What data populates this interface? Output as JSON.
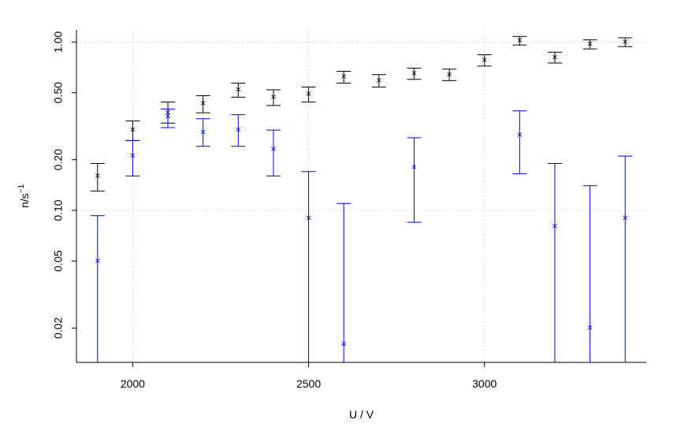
{
  "chart_data": {
    "type": "scatter",
    "xlabel": "U / V",
    "ylabel": "n/s",
    "ylabel_superscript": "−1",
    "y_scale": "log",
    "xlim": [
      1840,
      3460
    ],
    "ylim": [
      0.0125,
      1.18
    ],
    "x_ticks": [
      2000,
      2500,
      3000
    ],
    "x_tick_labels": [
      "2000",
      "2500",
      "3000"
    ],
    "y_ticks": [
      0.02,
      0.05,
      0.1,
      0.2,
      0.5,
      1.0
    ],
    "y_tick_labels": [
      "0.02",
      "0.05",
      "0.10",
      "0.20",
      "0.50",
      "1.00"
    ],
    "grid_x": [
      2000,
      2500,
      3000
    ],
    "grid_y": [
      0.1,
      1.0
    ],
    "series": [
      {
        "color": "#000000",
        "points": [
          {
            "x": 1900,
            "y": 0.16,
            "lo": 0.13,
            "hi": 0.19
          },
          {
            "x": 2000,
            "y": 0.3,
            "lo": 0.26,
            "hi": 0.34
          },
          {
            "x": 2100,
            "y": 0.38,
            "lo": 0.33,
            "hi": 0.44
          },
          {
            "x": 2200,
            "y": 0.43,
            "lo": 0.38,
            "hi": 0.48
          },
          {
            "x": 2300,
            "y": 0.52,
            "lo": 0.47,
            "hi": 0.57
          },
          {
            "x": 2400,
            "y": 0.47,
            "lo": 0.42,
            "hi": 0.52
          },
          {
            "x": 2500,
            "y": 0.49,
            "lo": 0.44,
            "hi": 0.54
          },
          {
            "x": 2600,
            "y": 0.62,
            "lo": 0.57,
            "hi": 0.67
          },
          {
            "x": 2700,
            "y": 0.59,
            "lo": 0.54,
            "hi": 0.64
          },
          {
            "x": 2800,
            "y": 0.65,
            "lo": 0.6,
            "hi": 0.7
          },
          {
            "x": 2900,
            "y": 0.64,
            "lo": 0.59,
            "hi": 0.69
          },
          {
            "x": 3000,
            "y": 0.78,
            "lo": 0.72,
            "hi": 0.84
          },
          {
            "x": 3100,
            "y": 1.02,
            "lo": 0.96,
            "hi": 1.08
          },
          {
            "x": 3200,
            "y": 0.81,
            "lo": 0.75,
            "hi": 0.87
          },
          {
            "x": 3300,
            "y": 0.97,
            "lo": 0.91,
            "hi": 1.03
          },
          {
            "x": 3400,
            "y": 1.0,
            "lo": 0.94,
            "hi": 1.06
          }
        ]
      },
      {
        "color": "#0000ee",
        "points": [
          {
            "x": 1900,
            "y": 0.05,
            "lo": 0.005,
            "hi": 0.093
          },
          {
            "x": 2000,
            "y": 0.21,
            "lo": 0.16,
            "hi": 0.26
          },
          {
            "x": 2100,
            "y": 0.36,
            "lo": 0.31,
            "hi": 0.4
          },
          {
            "x": 2200,
            "y": 0.29,
            "lo": 0.24,
            "hi": 0.35
          },
          {
            "x": 2300,
            "y": 0.3,
            "lo": 0.24,
            "hi": 0.37
          },
          {
            "x": 2400,
            "y": 0.23,
            "lo": 0.16,
            "hi": 0.3
          },
          {
            "x": 2500,
            "y": 0.09,
            "lo": 0.005,
            "hi": 0.17
          },
          {
            "x": 2600,
            "y": 0.016,
            "lo": 0.005,
            "hi": 0.11
          },
          {
            "x": 2800,
            "y": 0.18,
            "lo": 0.085,
            "hi": 0.27
          },
          {
            "x": 3100,
            "y": 0.28,
            "lo": 0.165,
            "hi": 0.39
          },
          {
            "x": 3200,
            "y": 0.08,
            "lo": 0.005,
            "hi": 0.19
          },
          {
            "x": 3300,
            "y": 0.02,
            "lo": 0.005,
            "hi": 0.14
          },
          {
            "x": 3400,
            "y": 0.09,
            "lo": 0.005,
            "hi": 0.21
          }
        ]
      }
    ]
  }
}
